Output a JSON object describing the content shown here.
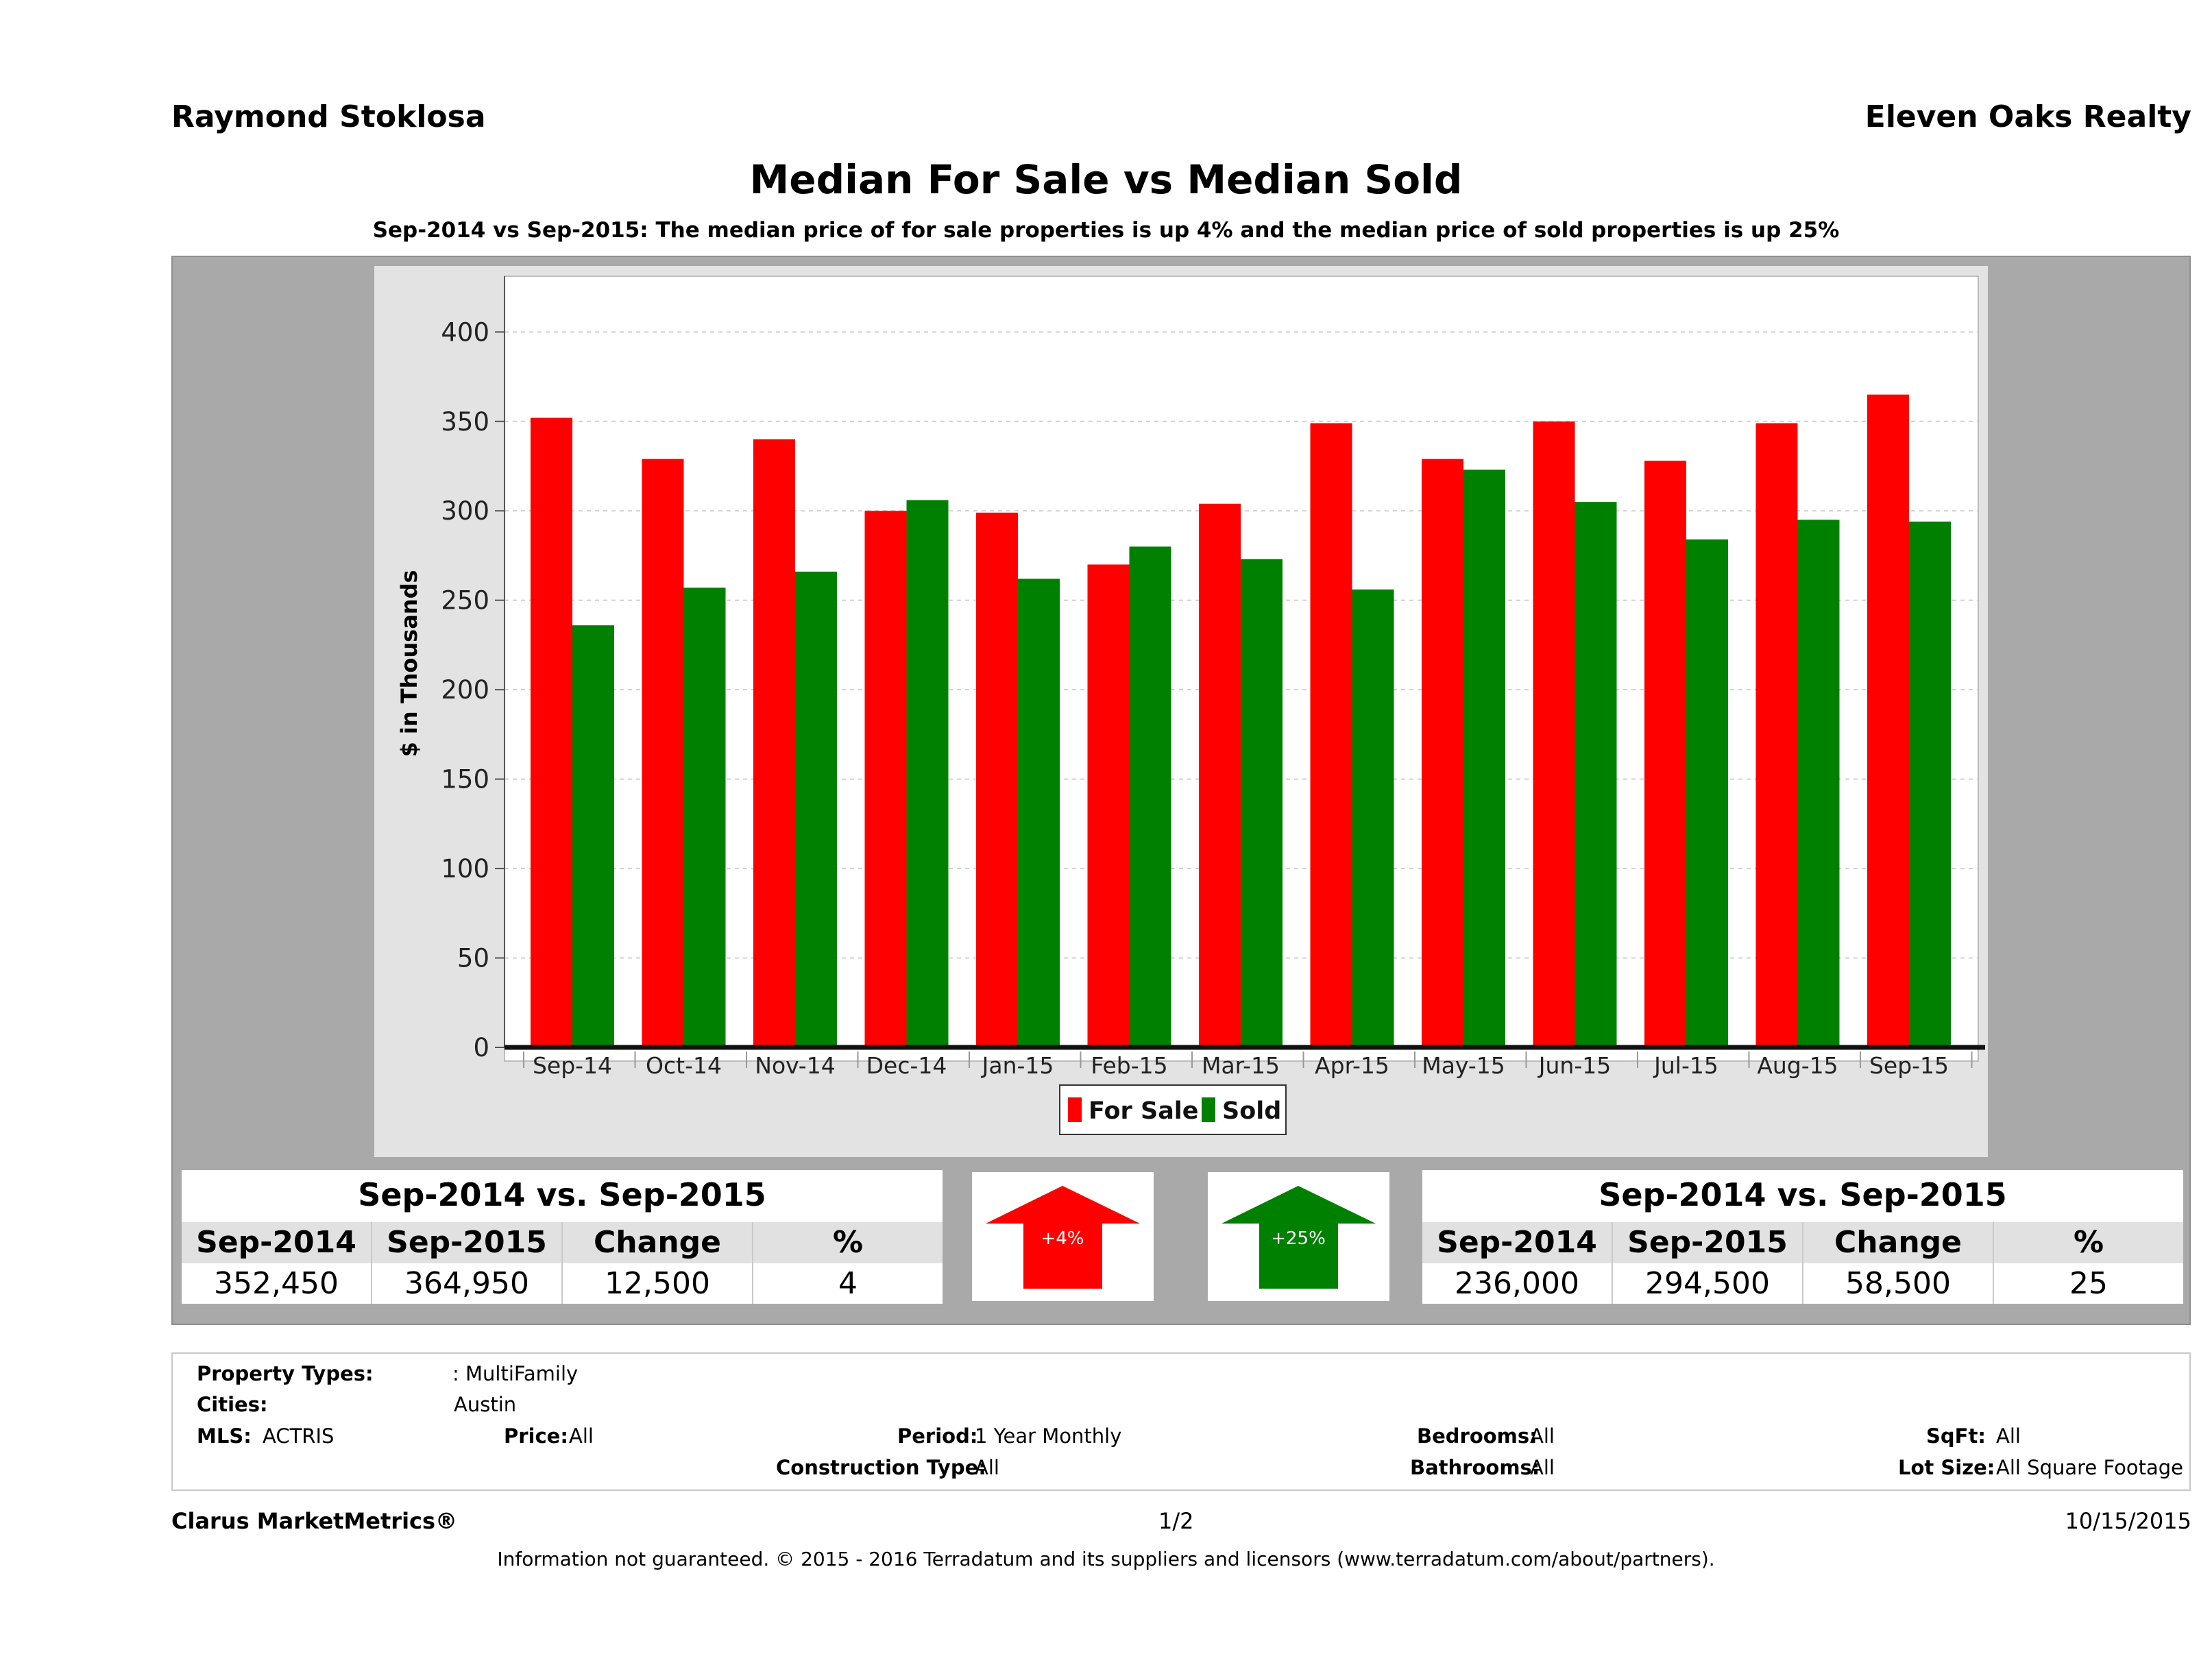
{
  "header": {
    "agent": "Raymond Stoklosa",
    "company": "Eleven Oaks Realty",
    "title": "Median For Sale vs Median Sold",
    "subtitle": "Sep-2014 vs Sep-2015: The median price of for sale properties is up 4% and the median price of sold properties is up 25%"
  },
  "chart_data": {
    "type": "bar",
    "categories": [
      "Sep-14",
      "Oct-14",
      "Nov-14",
      "Dec-14",
      "Jan-15",
      "Feb-15",
      "Mar-15",
      "Apr-15",
      "May-15",
      "Jun-15",
      "Jul-15",
      "Aug-15",
      "Sep-15"
    ],
    "series": [
      {
        "name": "For Sale",
        "color": "#ff0000",
        "values": [
          352,
          329,
          340,
          300,
          299,
          270,
          304,
          349,
          329,
          350,
          328,
          349,
          365
        ]
      },
      {
        "name": "Sold",
        "color": "#008000",
        "values": [
          236,
          257,
          266,
          306,
          262,
          280,
          273,
          256,
          323,
          305,
          284,
          295,
          294
        ]
      }
    ],
    "ylabel": "$ in Thousands",
    "ylim": [
      0,
      435
    ],
    "yticks": [
      0,
      50,
      100,
      150,
      200,
      250,
      300,
      350,
      400
    ],
    "grid": true,
    "legend_position": "bottom"
  },
  "for_sale_stats": {
    "caption": "Sep-2014 vs. Sep-2015",
    "headers": [
      "Sep-2014",
      "Sep-2015",
      "Change",
      "%"
    ],
    "values": [
      "352,450",
      "364,950",
      "12,500",
      "4"
    ],
    "arrow_label": "+4%",
    "arrow_color": "#ff0000"
  },
  "sold_stats": {
    "caption": "Sep-2014 vs. Sep-2015",
    "headers": [
      "Sep-2014",
      "Sep-2015",
      "Change",
      "%"
    ],
    "values": [
      "236,000",
      "294,500",
      "58,500",
      "25"
    ],
    "arrow_label": "+25%",
    "arrow_color": "#008000"
  },
  "criteria": {
    "property_types_label": "Property Types:",
    "property_types_value": ": MultiFamily",
    "cities_label": "Cities:",
    "cities_value": "Austin",
    "mls_label": "MLS:",
    "mls_value": "ACTRIS",
    "price_label": "Price:",
    "price_value": "All",
    "period_label": "Period:",
    "period_value": "1 Year Monthly",
    "construction_label": "Construction Type:",
    "construction_value": "All",
    "bedrooms_label": "Bedrooms:",
    "bedrooms_value": "All",
    "bathrooms_label": "Bathrooms:",
    "bathrooms_value": "All",
    "sqft_label": "SqFt:",
    "sqft_value": "All",
    "lotsize_label": "Lot Size:",
    "lotsize_value": "All Square Footage"
  },
  "footer": {
    "brand": "Clarus MarketMetrics®",
    "page": "1/2",
    "date": "10/15/2015",
    "disclaimer": "Information not guaranteed. © 2015 - 2016 Terradatum and its suppliers and licensors (www.terradatum.com/about/partners)."
  }
}
